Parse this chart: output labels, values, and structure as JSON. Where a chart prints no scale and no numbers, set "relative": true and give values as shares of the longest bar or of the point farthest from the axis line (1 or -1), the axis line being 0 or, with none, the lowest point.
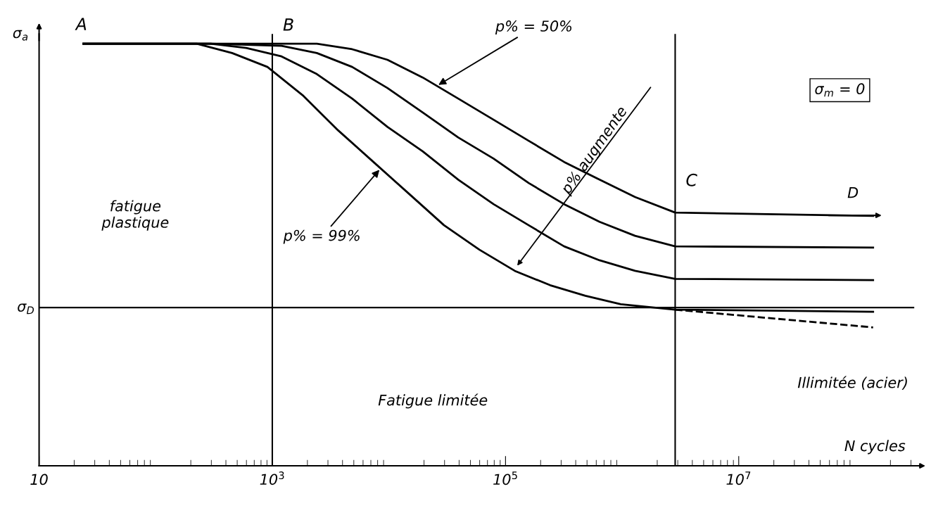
{
  "chart_data": {
    "type": "line",
    "relative": true,
    "ylabel": "σ$_{a}$",
    "xlabel": "N cycles",
    "log": "x",
    "xlim": [
      10,
      320000000
    ],
    "xticks": [
      {
        "value": 10,
        "label": "10"
      },
      {
        "value": 1000,
        "label": "10$^{3}$"
      },
      {
        "value": 100000,
        "label": "10$^{5}$"
      },
      {
        "value": 10000000,
        "label": "10$^{7}$"
      }
    ],
    "grid": false,
    "marker": "none",
    "series": [
      {
        "color": "#000000",
        "line_style": "solid",
        "x": [
          24,
          297,
          2410,
          4840,
          9720,
          19500,
          39300,
          78900,
          158000,
          318000,
          640000,
          1290000,
          2850000,
          142000000
        ],
        "values": [
          1.0,
          1.0,
          1.0,
          0.987,
          0.962,
          0.92,
          0.87,
          0.82,
          0.77,
          0.72,
          0.678,
          0.637,
          0.6,
          0.592
        ]
      },
      {
        "color": "#000000",
        "line_style": "solid",
        "x": [
          24,
          297,
          1200,
          2410,
          4840,
          9720,
          19500,
          39300,
          78900,
          158000,
          318000,
          640000,
          1290000,
          2850000,
          142000000
        ],
        "values": [
          1.0,
          1.0,
          0.995,
          0.978,
          0.945,
          0.895,
          0.837,
          0.778,
          0.728,
          0.67,
          0.62,
          0.578,
          0.545,
          0.52,
          0.517
        ]
      },
      {
        "color": "#000000",
        "line_style": "solid",
        "x": [
          24,
          297,
          597,
          1200,
          2410,
          4840,
          9720,
          19500,
          39300,
          78900,
          158000,
          318000,
          640000,
          1290000,
          2850000,
          142000000
        ],
        "values": [
          1.0,
          1.0,
          0.99,
          0.97,
          0.928,
          0.87,
          0.803,
          0.745,
          0.678,
          0.62,
          0.57,
          0.52,
          0.487,
          0.462,
          0.443,
          0.44
        ]
      },
      {
        "color": "#000000",
        "line_style": "solid",
        "x": [
          24,
          225,
          452,
          908,
          1820,
          3660,
          7360,
          14800,
          29700,
          59700,
          120000,
          241000,
          484000,
          973000,
          2850000,
          142000000
        ],
        "values": [
          1.0,
          1.0,
          0.978,
          0.945,
          0.878,
          0.795,
          0.72,
          0.645,
          0.57,
          0.512,
          0.462,
          0.428,
          0.403,
          0.383,
          0.37,
          0.365
        ]
      },
      {
        "color": "#000000",
        "line_style": "dashed",
        "x": [
          2850000,
          142000000
        ],
        "values": [
          0.37,
          0.328
        ]
      }
    ],
    "ref_lines": [
      {
        "axis": "x",
        "value": 1000,
        "label": "B",
        "color": "#000000"
      },
      {
        "axis": "x",
        "value": 2850000,
        "label": "C",
        "color": "#000000"
      },
      {
        "axis": "y",
        "value": 0.375,
        "label": "σ$_{D}$",
        "color": "#000000"
      }
    ],
    "annotations": [
      {
        "text": "A",
        "x": 24,
        "y": 1.0
      },
      "D",
      "fatigue\nplastique",
      "Fatigue limitée",
      "Illimitée (acier)",
      {
        "text": "p% = 50%",
        "x": 25700,
        "y": 0.9
      },
      {
        "text": "p% = 99%",
        "x": 8500,
        "y": 0.705
      },
      "p% augmente",
      "σ$_{m}$ = 0"
    ]
  }
}
